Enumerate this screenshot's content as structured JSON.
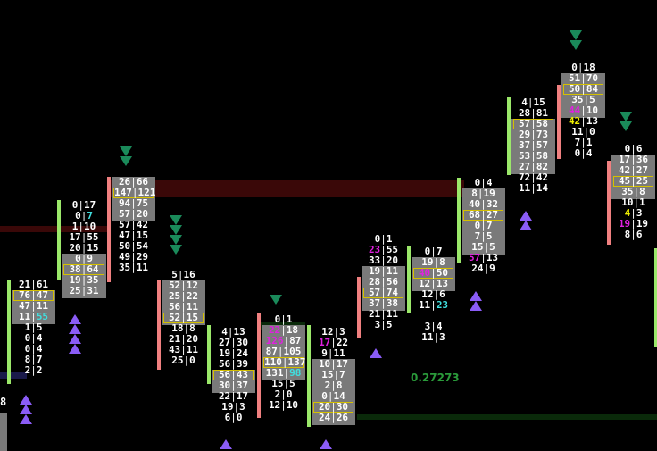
{
  "chart_data": {
    "type": "footprint",
    "title": "",
    "colors": {
      "bid_ask_text": "#ffffff",
      "value_area_fill": "#7a7a7a",
      "poc_border": "#d4c000",
      "bar_up": "#9be86a",
      "bar_down": "#f08080",
      "imbalance_magenta": "#e020e0",
      "imbalance_cyan": "#40e0e0",
      "imbalance_yellow": "#f0f000",
      "signal_up": "#8a5cf6",
      "signal_down": "#1a8a5a"
    },
    "annotations": {
      "ratio_value": "0.27273",
      "left_edge_value": "8"
    },
    "candles": [
      {
        "dir": "up",
        "rows": [
          {
            "b": "21",
            "a": "61"
          },
          {
            "b": "76",
            "a": "47",
            "poc": true
          },
          {
            "b": "47",
            "a": "11"
          },
          {
            "b": "11",
            "a": "55",
            "ac": "cyan"
          },
          {
            "b": "1",
            "a": "5"
          },
          {
            "b": "0",
            "a": "4"
          },
          {
            "b": "0",
            "a": "4"
          },
          {
            "b": "8",
            "a": "7"
          },
          {
            "b": "2",
            "a": "2"
          }
        ],
        "signals": [
          "up",
          "up",
          "up"
        ]
      },
      {
        "dir": "up",
        "rows": [
          {
            "b": "0",
            "a": "17"
          },
          {
            "b": "0",
            "a": "7",
            "ac": "cyan"
          },
          {
            "b": "1",
            "a": "10"
          },
          {
            "b": "17",
            "a": "55"
          },
          {
            "b": "20",
            "a": "15"
          },
          {
            "b": "0",
            "a": "9"
          },
          {
            "b": "38",
            "a": "64",
            "poc": true
          },
          {
            "b": "19",
            "a": "35"
          },
          {
            "b": "25",
            "a": "31"
          }
        ],
        "signals": [
          "up",
          "up",
          "up",
          "up"
        ]
      },
      {
        "dir": "down",
        "rows": [
          {
            "b": "26",
            "a": "66"
          },
          {
            "b": "147",
            "a": "121",
            "poc": true
          },
          {
            "b": "94",
            "a": "75"
          },
          {
            "b": "57",
            "a": "20"
          },
          {
            "b": "57",
            "a": "42"
          },
          {
            "b": "47",
            "a": "15"
          },
          {
            "b": "50",
            "a": "54"
          },
          {
            "b": "49",
            "a": "29"
          },
          {
            "b": "35",
            "a": "11"
          }
        ],
        "signals": [
          "down",
          "down"
        ]
      },
      {
        "dir": "down",
        "rows": [
          {
            "b": "5",
            "a": "16"
          },
          {
            "b": "52",
            "a": "12"
          },
          {
            "b": "25",
            "a": "22"
          },
          {
            "b": "56",
            "a": "11"
          },
          {
            "b": "52",
            "a": "15",
            "poc": true
          },
          {
            "b": "18",
            "a": "8"
          },
          {
            "b": "21",
            "a": "20"
          },
          {
            "b": "43",
            "a": "11"
          },
          {
            "b": "25",
            "a": "0"
          }
        ],
        "signals": [
          "down",
          "down",
          "down",
          "down"
        ]
      },
      {
        "dir": "up",
        "rows": [
          {
            "b": "4",
            "a": "13"
          },
          {
            "b": "27",
            "a": "30"
          },
          {
            "b": "19",
            "a": "24"
          },
          {
            "b": "56",
            "a": "39"
          },
          {
            "b": "56",
            "a": "43",
            "poc": true
          },
          {
            "b": "30",
            "a": "37"
          },
          {
            "b": "22",
            "a": "17"
          },
          {
            "b": "19",
            "a": "3"
          },
          {
            "b": "6",
            "a": "0"
          }
        ],
        "signals": [
          "up"
        ]
      },
      {
        "dir": "down",
        "rows": [
          {
            "b": "0",
            "a": "1"
          },
          {
            "b": "22",
            "a": "18",
            "bc": "magenta"
          },
          {
            "b": "126",
            "a": "87",
            "bc": "magenta"
          },
          {
            "b": "87",
            "a": "105"
          },
          {
            "b": "110",
            "a": "137",
            "poc": true
          },
          {
            "b": "131",
            "a": "98",
            "ac": "cyan"
          },
          {
            "b": "15",
            "a": "5"
          },
          {
            "b": "2",
            "a": "0"
          },
          {
            "b": "12",
            "a": "10"
          }
        ],
        "signals": [
          "down"
        ]
      },
      {
        "dir": "up",
        "rows": [
          {
            "b": "12",
            "a": "3"
          },
          {
            "b": "17",
            "a": "22",
            "bc": "magenta"
          },
          {
            "b": "9",
            "a": "11"
          },
          {
            "b": "10",
            "a": "17"
          },
          {
            "b": "15",
            "a": "7"
          },
          {
            "b": "2",
            "a": "8"
          },
          {
            "b": "0",
            "a": "14"
          },
          {
            "b": "20",
            "a": "30",
            "poc": true
          },
          {
            "b": "24",
            "a": "26"
          }
        ],
        "signals": [
          "up"
        ]
      },
      {
        "dir": "down",
        "rows": [
          {
            "b": "0",
            "a": "1"
          },
          {
            "b": "23",
            "a": "55",
            "bc": "magenta"
          },
          {
            "b": "33",
            "a": "20"
          },
          {
            "b": "19",
            "a": "11"
          },
          {
            "b": "28",
            "a": "56"
          },
          {
            "b": "57",
            "a": "74",
            "poc": true
          },
          {
            "b": "37",
            "a": "38"
          },
          {
            "b": "21",
            "a": "11"
          },
          {
            "b": "3",
            "a": "5"
          }
        ],
        "signals": [
          "up"
        ]
      },
      {
        "dir": "up",
        "rows": [
          {
            "b": "0",
            "a": "7"
          },
          {
            "b": "19",
            "a": "8"
          },
          {
            "b": "40",
            "a": "50",
            "poc": true,
            "bc": "magenta"
          },
          {
            "b": "12",
            "a": "13"
          },
          {
            "b": "12",
            "a": "6"
          },
          {
            "b": "11",
            "a": "23",
            "ac": "cyan"
          },
          {
            "b": "",
            "a": ""
          },
          {
            "b": "3",
            "a": "4"
          },
          {
            "b": "11",
            "a": "3"
          }
        ],
        "signals": []
      },
      {
        "dir": "up",
        "rows": [
          {
            "b": "0",
            "a": "4"
          },
          {
            "b": "8",
            "a": "19"
          },
          {
            "b": "40",
            "a": "32"
          },
          {
            "b": "68",
            "a": "27",
            "poc": true
          },
          {
            "b": "0",
            "a": "7"
          },
          {
            "b": "7",
            "a": "5"
          },
          {
            "b": "15",
            "a": "5"
          },
          {
            "b": "57",
            "a": "13",
            "bc": "magenta"
          },
          {
            "b": "24",
            "a": "9"
          }
        ],
        "signals": [
          "up",
          "up"
        ]
      },
      {
        "dir": "up",
        "rows": [
          {
            "b": "4",
            "a": "15"
          },
          {
            "b": "28",
            "a": "81"
          },
          {
            "b": "57",
            "a": "58",
            "poc": true
          },
          {
            "b": "29",
            "a": "73"
          },
          {
            "b": "37",
            "a": "57"
          },
          {
            "b": "53",
            "a": "58"
          },
          {
            "b": "27",
            "a": "82"
          },
          {
            "b": "72",
            "a": "42"
          },
          {
            "b": "11",
            "a": "14"
          }
        ],
        "signals": [
          "up",
          "up"
        ]
      },
      {
        "dir": "down",
        "rows": [
          {
            "b": "0",
            "a": "18"
          },
          {
            "b": "51",
            "a": "70"
          },
          {
            "b": "50",
            "a": "84",
            "poc": true
          },
          {
            "b": "35",
            "a": "5"
          },
          {
            "b": "44",
            "a": "10",
            "bc": "magenta"
          },
          {
            "b": "42",
            "a": "13",
            "bc": "yellow"
          },
          {
            "b": "11",
            "a": "0"
          },
          {
            "b": "7",
            "a": "1"
          },
          {
            "b": "0",
            "a": "4"
          }
        ],
        "signals": [
          "down",
          "down"
        ]
      },
      {
        "dir": "down",
        "rows": [
          {
            "b": "0",
            "a": "6"
          },
          {
            "b": "17",
            "a": "36"
          },
          {
            "b": "42",
            "a": "27"
          },
          {
            "b": "45",
            "a": "25",
            "poc": true
          },
          {
            "b": "35",
            "a": "8"
          },
          {
            "b": "10",
            "a": "1"
          },
          {
            "b": "4",
            "a": "3",
            "bc": "yellow"
          },
          {
            "b": "19",
            "a": "19",
            "bc": "magenta"
          },
          {
            "b": "8",
            "a": "6"
          }
        ],
        "signals": [
          "down",
          "down"
        ]
      }
    ]
  }
}
